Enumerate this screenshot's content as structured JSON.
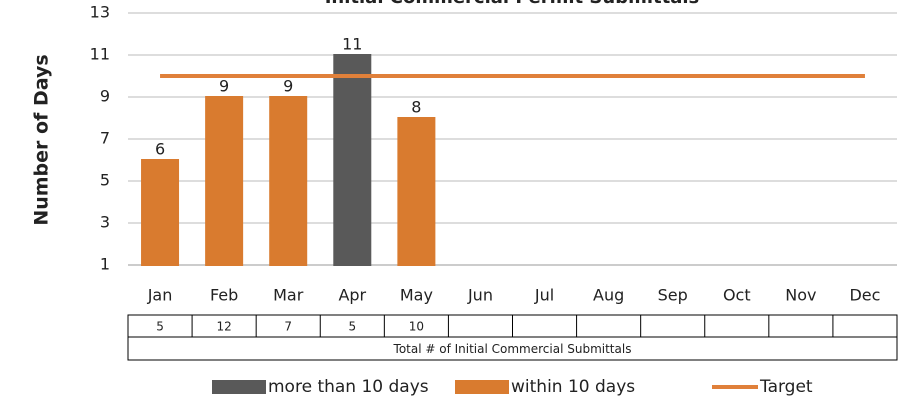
{
  "chart_data": {
    "type": "bar",
    "title": "Initial Commercial Permit Submittals",
    "y_label": "Number of Days",
    "categories": [
      "Jan",
      "Feb",
      "Mar",
      "Apr",
      "May",
      "Jun",
      "Jul",
      "Aug",
      "Sep",
      "Oct",
      "Nov",
      "Dec"
    ],
    "series": [
      {
        "name": "more than 10 days",
        "color": "#595959",
        "values": [
          null,
          null,
          null,
          11,
          null,
          null,
          null,
          null,
          null,
          null,
          null,
          null
        ]
      },
      {
        "name": "within 10 days",
        "color": "#d97b2f",
        "values": [
          6,
          9,
          9,
          null,
          8,
          1,
          1,
          1,
          1,
          1,
          1,
          1
        ]
      },
      {
        "name": "Target",
        "color": "#e0803a",
        "type": "line",
        "values": [
          10,
          10,
          10,
          10,
          10,
          10,
          10,
          10,
          10,
          10,
          10,
          10
        ]
      }
    ],
    "data_labels": [
      0,
      1,
      2,
      3,
      4
    ],
    "ylim": [
      1,
      13
    ],
    "yticks": [
      1,
      3,
      5,
      7,
      9,
      11,
      13
    ],
    "grid": true,
    "table": {
      "label": "Total # of Initial Commercial Submittals",
      "values": [
        5,
        12,
        7,
        5,
        10,
        null,
        null,
        null,
        null,
        null,
        null,
        null
      ]
    },
    "legend": "bottom"
  }
}
